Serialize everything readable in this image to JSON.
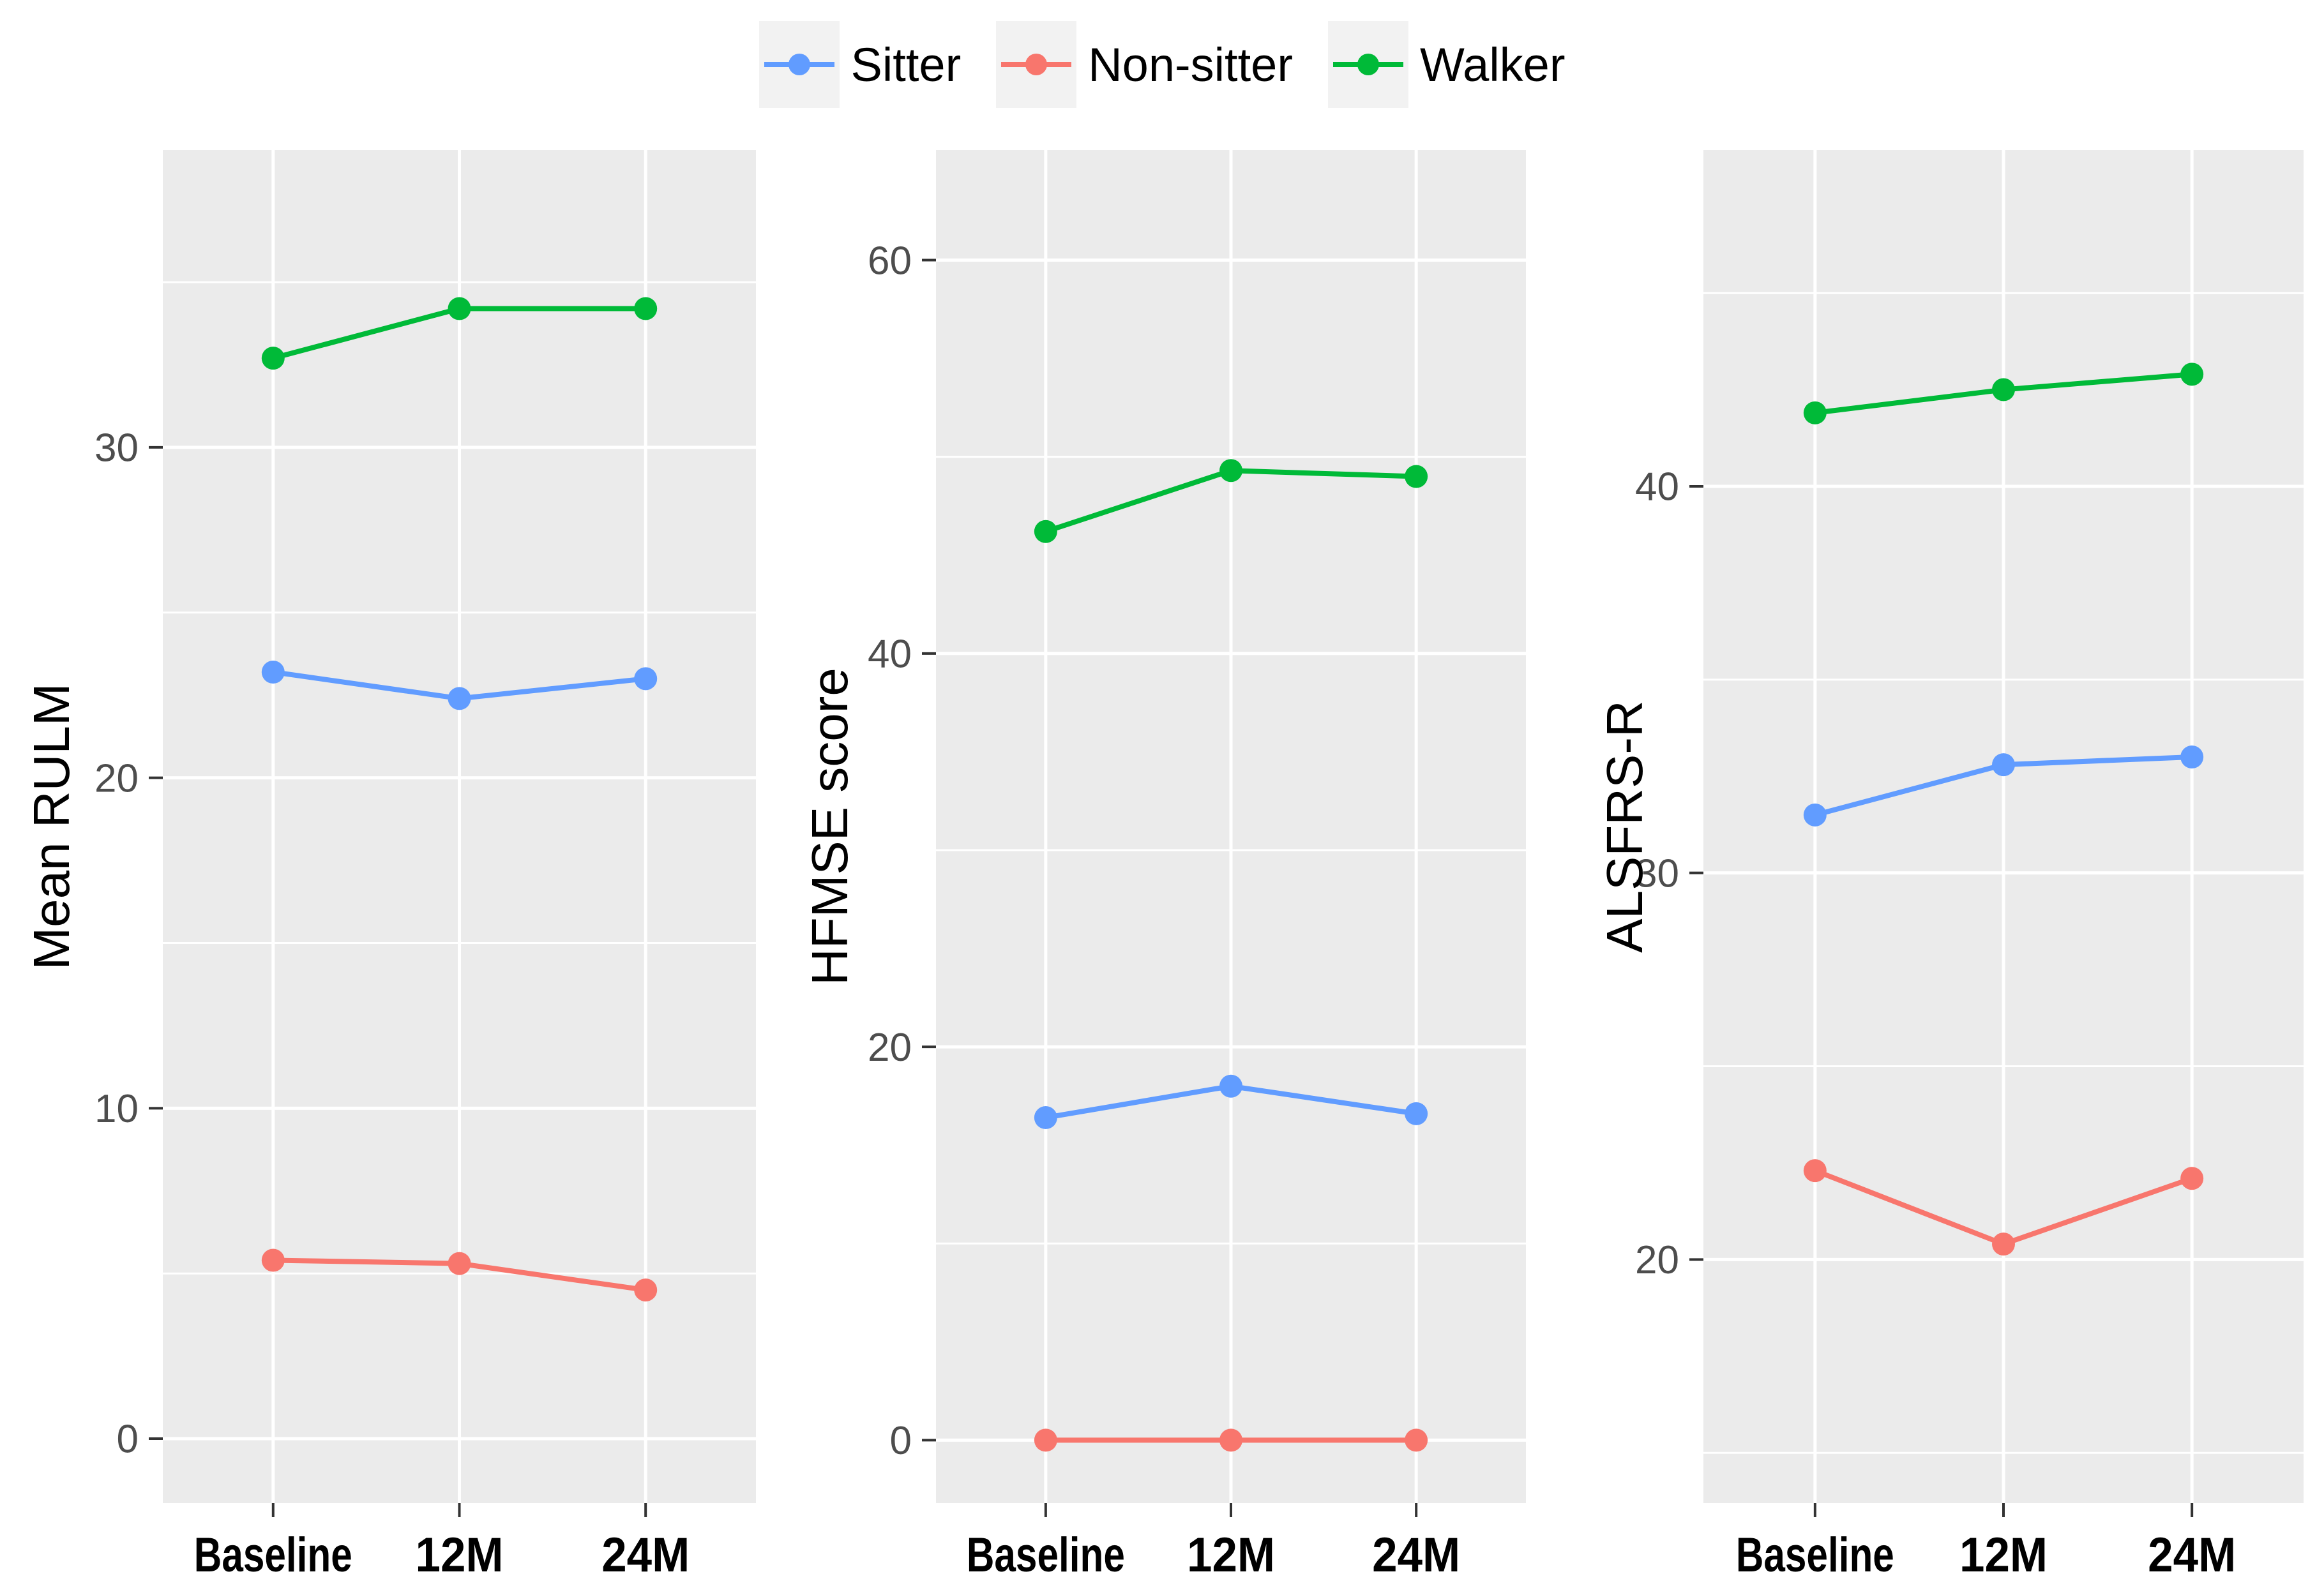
{
  "figure": {
    "background": "#FFFFFF",
    "panel_background": "#EBEBEB",
    "gridline_color": "#FFFFFF",
    "tick_mark_color": "#333333",
    "tick_label_color": "#4D4D4D",
    "text_color": "#000000"
  },
  "legend": {
    "position": "top-center",
    "key_background": "#F2F2F2",
    "items": [
      {
        "label": "Sitter",
        "color": "#619CFF"
      },
      {
        "label": "Non-sitter",
        "color": "#F8766D"
      },
      {
        "label": "Walker",
        "color": "#00BA38"
      }
    ]
  },
  "chart_data": [
    {
      "type": "line",
      "title": "",
      "xlabel": "",
      "ylabel": "Mean RULM",
      "categories": [
        "Baseline",
        "12M",
        "24M"
      ],
      "series": [
        {
          "name": "Sitter",
          "color": "#619CFF",
          "values": [
            23.2,
            22.4,
            23.0
          ]
        },
        {
          "name": "Non-sitter",
          "color": "#F8766D",
          "values": [
            5.4,
            5.3,
            4.5
          ]
        },
        {
          "name": "Walker",
          "color": "#00BA38",
          "values": [
            32.7,
            34.2,
            34.2
          ]
        }
      ],
      "ylim": [
        -1.95,
        39.0
      ],
      "yticks": [
        0,
        10,
        20,
        30
      ],
      "yticks_minor": [
        5,
        15,
        25,
        35
      ],
      "grid": true,
      "legend_position": "top"
    },
    {
      "type": "line",
      "title": "",
      "xlabel": "",
      "ylabel": "HFMSE score",
      "categories": [
        "Baseline",
        "12M",
        "24M"
      ],
      "series": [
        {
          "name": "Sitter",
          "color": "#619CFF",
          "values": [
            16.4,
            18.0,
            16.6
          ]
        },
        {
          "name": "Non-sitter",
          "color": "#F8766D",
          "values": [
            0,
            0,
            0
          ]
        },
        {
          "name": "Walker",
          "color": "#00BA38",
          "values": [
            46.2,
            49.3,
            49.0
          ]
        }
      ],
      "ylim": [
        -3.2,
        65.6
      ],
      "yticks": [
        0,
        20,
        40,
        60
      ],
      "yticks_minor": [
        10,
        30,
        50
      ],
      "grid": true,
      "legend_position": "top"
    },
    {
      "type": "line",
      "title": "",
      "xlabel": "",
      "ylabel": "ALSFRS-R",
      "categories": [
        "Baseline",
        "12M",
        "24M"
      ],
      "series": [
        {
          "name": "Sitter",
          "color": "#619CFF",
          "values": [
            31.5,
            32.8,
            33.0
          ]
        },
        {
          "name": "Non-sitter",
          "color": "#F8766D",
          "values": [
            22.3,
            20.4,
            22.1
          ]
        },
        {
          "name": "Walker",
          "color": "#00BA38",
          "values": [
            41.9,
            42.5,
            42.9
          ]
        }
      ],
      "ylim": [
        13.7,
        48.7
      ],
      "yticks": [
        20,
        30,
        40
      ],
      "yticks_minor": [
        15,
        25,
        35,
        45
      ],
      "grid": true,
      "legend_position": "top"
    }
  ]
}
